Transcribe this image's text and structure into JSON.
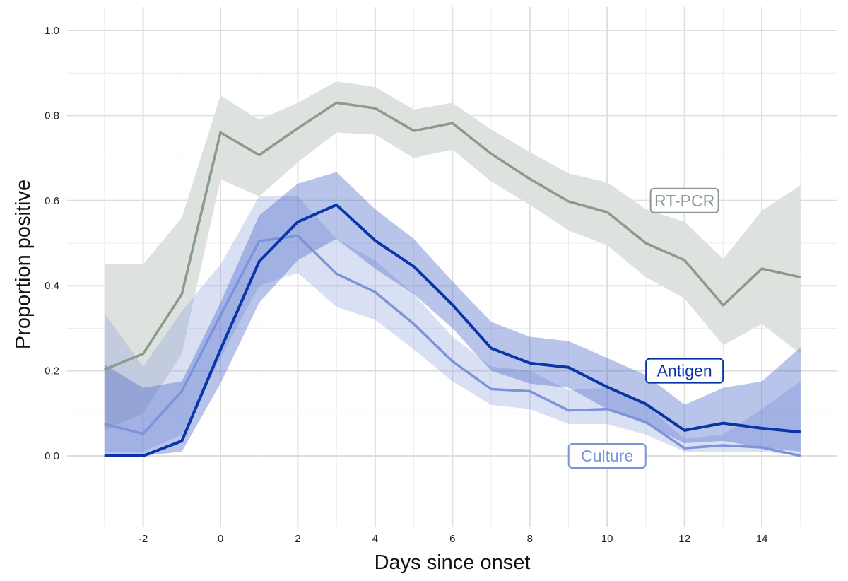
{
  "chart_data": {
    "type": "line",
    "title": "",
    "xlabel": "Days since onset",
    "ylabel": "Proportion positive",
    "xlim": [
      -3.5,
      15.5
    ],
    "ylim": [
      -0.15,
      1.04
    ],
    "grid": true,
    "x": [
      -3,
      -2,
      -1,
      0,
      1,
      2,
      3,
      4,
      5,
      6,
      7,
      8,
      9,
      10,
      11,
      12,
      13,
      14,
      15
    ],
    "xticks": [
      -2,
      0,
      2,
      4,
      6,
      8,
      10,
      12,
      14
    ],
    "xtick_labels": [
      "-2",
      "0",
      "2",
      "4",
      "6",
      "8",
      "10",
      "12",
      "14"
    ],
    "yticks": [
      0,
      0.2,
      0.4,
      0.6,
      0.8,
      1.0
    ],
    "ytick_labels": [
      "0.0",
      "0.2",
      "0.4",
      "0.6",
      "0.8",
      "1.0"
    ],
    "series": [
      {
        "name": "RT-PCR",
        "color": "#8a9a8e",
        "band_color": "#dde2df",
        "label_x": 12,
        "label_y": 0.6,
        "values": [
          0.203,
          0.24,
          0.38,
          0.76,
          0.707,
          0.77,
          0.83,
          0.817,
          0.764,
          0.782,
          0.71,
          0.651,
          0.598,
          0.573,
          0.5,
          0.46,
          0.354,
          0.44,
          0.42
        ],
        "upper": [
          0.45,
          0.45,
          0.56,
          0.847,
          0.79,
          0.83,
          0.88,
          0.867,
          0.814,
          0.83,
          0.767,
          0.714,
          0.664,
          0.643,
          0.58,
          0.55,
          0.463,
          0.576,
          0.636
        ],
        "lower": [
          0.06,
          0.1,
          0.24,
          0.65,
          0.61,
          0.69,
          0.76,
          0.755,
          0.7,
          0.72,
          0.645,
          0.59,
          0.53,
          0.495,
          0.42,
          0.37,
          0.26,
          0.31,
          0.24
        ]
      },
      {
        "name": "Culture",
        "color": "#7b93d9",
        "band_color": "rgba(140,160,220,0.32)",
        "label_x": 10,
        "label_y": 0.0,
        "values": [
          0.075,
          0.052,
          0.152,
          0.33,
          0.505,
          0.517,
          0.428,
          0.385,
          0.31,
          0.222,
          0.157,
          0.152,
          0.107,
          0.11,
          0.08,
          0.018,
          0.025,
          0.02,
          0.0
        ],
        "upper": [
          0.335,
          0.21,
          0.34,
          0.45,
          0.61,
          0.61,
          0.51,
          0.46,
          0.38,
          0.28,
          0.21,
          0.2,
          0.155,
          0.16,
          0.12,
          0.04,
          0.05,
          0.11,
          0.175
        ],
        "lower": [
          0.01,
          0.01,
          0.05,
          0.23,
          0.4,
          0.43,
          0.35,
          0.32,
          0.25,
          0.175,
          0.12,
          0.11,
          0.075,
          0.075,
          0.05,
          0.01,
          0.01,
          0.01,
          0.0
        ]
      },
      {
        "name": "Antigen",
        "color": "#0a35a8",
        "band_color": "rgba(70,100,200,0.38)",
        "label_x": 12,
        "label_y": 0.2,
        "values": [
          0,
          0,
          0.035,
          0.25,
          0.457,
          0.55,
          0.59,
          0.506,
          0.445,
          0.355,
          0.253,
          0.218,
          0.208,
          0.162,
          0.122,
          0.06,
          0.077,
          0.065,
          0.056
        ],
        "upper": [
          0.215,
          0.16,
          0.175,
          0.36,
          0.565,
          0.64,
          0.667,
          0.58,
          0.51,
          0.41,
          0.315,
          0.28,
          0.27,
          0.23,
          0.19,
          0.12,
          0.16,
          0.175,
          0.255
        ],
        "lower": [
          0,
          0,
          0.01,
          0.17,
          0.36,
          0.46,
          0.51,
          0.44,
          0.38,
          0.3,
          0.2,
          0.17,
          0.16,
          0.11,
          0.075,
          0.03,
          0.035,
          0.02,
          0.01
        ]
      }
    ]
  }
}
